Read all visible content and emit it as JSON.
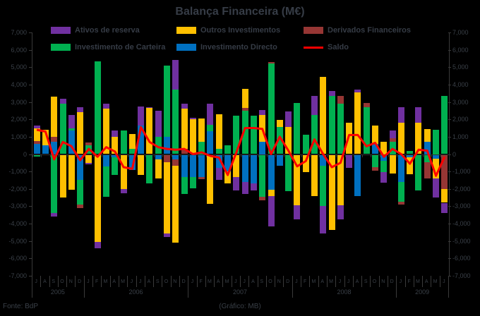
{
  "title": "Balança Financeira (M€)",
  "legend": [
    {
      "label": "Ativos de reserva",
      "color": "#7030A0",
      "type": "box"
    },
    {
      "label": "Outros Investimentos",
      "color": "#FFC000",
      "type": "box"
    },
    {
      "label": "Derivados Financeiros",
      "color": "#963634",
      "type": "box"
    },
    {
      "label": "Investimento de Carteira",
      "color": "#00B050",
      "type": "box"
    },
    {
      "label": "Investimento Directo",
      "color": "#0070C0",
      "type": "box"
    },
    {
      "label": "Saldo",
      "color": "#FF0000",
      "type": "line"
    }
  ],
  "footer": {
    "source": "Fonte: BdP",
    "credit": "(Gráfico: MB)"
  },
  "colors": {
    "background": "#000000",
    "text": "#3a4048",
    "axis": "#3a3a3a"
  },
  "chart_data": {
    "type": "bar",
    "stacked": true,
    "title": "Balança Financeira (M€)",
    "ylabel": "",
    "xlabel": "",
    "ylim": [
      -7000,
      7000
    ],
    "y_tick_step": 1000,
    "grid": false,
    "legend_position": "top",
    "y_tick_labels": [
      "7,000",
      "6,000",
      "5,000",
      "4,000",
      "3,000",
      "2,000",
      "1,000",
      "0",
      "-1,000",
      "-2,000",
      "-3,000",
      "-4,000",
      "-5,000",
      "-6,000",
      "-7,000"
    ],
    "months": [
      "J",
      "A",
      "S",
      "O",
      "N",
      "D",
      "J",
      "F",
      "M",
      "A",
      "M",
      "J",
      "J",
      "A",
      "S",
      "O",
      "N",
      "D",
      "J",
      "F",
      "M",
      "A",
      "M",
      "J",
      "J",
      "A",
      "S",
      "O",
      "N",
      "D",
      "J",
      "F",
      "M",
      "A",
      "M",
      "J",
      "J",
      "A",
      "S",
      "O",
      "N",
      "D",
      "J",
      "F",
      "M",
      "A",
      "M",
      "J"
    ],
    "year_groups": [
      {
        "label": "2005",
        "start": 0,
        "count": 6
      },
      {
        "label": "2006",
        "start": 6,
        "count": 12
      },
      {
        "label": "2007",
        "start": 18,
        "count": 12
      },
      {
        "label": "2008",
        "start": 30,
        "count": 12
      },
      {
        "label": "2009",
        "start": 42,
        "count": 6
      }
    ],
    "series": [
      {
        "name": "Investimento Directo",
        "color": "#0070C0",
        "values": [
          600,
          500,
          700,
          0,
          1350,
          -1500,
          0,
          0,
          -700,
          -200,
          0,
          -900,
          1650,
          0,
          -300,
          1000,
          -300,
          -1300,
          -1300,
          -1300,
          1300,
          -800,
          -1000,
          0,
          -1600,
          -1700,
          700,
          -2050,
          -650,
          0,
          0,
          0,
          0,
          -650,
          0,
          0,
          0,
          -2400,
          0,
          600,
          -400,
          0,
          -1600,
          -200,
          0,
          700,
          -250,
          0
        ]
      },
      {
        "name": "Investimento de Carteira",
        "color": "#00B050",
        "values": [
          -150,
          0,
          -3400,
          2900,
          150,
          -1400,
          500,
          5350,
          -1750,
          -1000,
          1350,
          300,
          0,
          -1700,
          1000,
          4100,
          3700,
          -1000,
          -650,
          700,
          400,
          300,
          500,
          2200,
          2500,
          2200,
          -2450,
          5200,
          1550,
          -2150,
          2950,
          1100,
          2250,
          -2350,
          3350,
          2900,
          0,
          0,
          2700,
          -750,
          -650,
          700,
          -1150,
          200,
          -2100,
          -450,
          1400,
          3350
        ]
      },
      {
        "name": "Derivados Financeiros",
        "color": "#963634",
        "values": [
          150,
          0,
          300,
          0,
          0,
          -200,
          150,
          0,
          0,
          0,
          0,
          0,
          0,
          0,
          0,
          -450,
          -350,
          300,
          0,
          -150,
          0,
          0,
          0,
          0,
          150,
          0,
          -200,
          100,
          0,
          0,
          0,
          0,
          0,
          0,
          0,
          450,
          0,
          0,
          250,
          -200,
          0,
          200,
          -150,
          0,
          0,
          -950,
          0,
          -2000
        ]
      },
      {
        "name": "Outros Investimentos",
        "color": "#FFC000",
        "values": [
          750,
          900,
          2300,
          -2500,
          -2050,
          2400,
          -500,
          -5050,
          2600,
          1000,
          -2000,
          850,
          -1200,
          2650,
          -1100,
          -4100,
          -4450,
          2300,
          2000,
          1350,
          -2850,
          2000,
          -700,
          -1300,
          1100,
          0,
          1550,
          -350,
          400,
          1550,
          -2950,
          -1050,
          -2400,
          4450,
          -4350,
          -2950,
          1800,
          3550,
          0,
          1050,
          700,
          -1100,
          1800,
          -950,
          1800,
          750,
          -1150,
          -800
        ]
      },
      {
        "name": "Ativos de reserva",
        "color": "#7030A0",
        "values": [
          150,
          0,
          -200,
          300,
          750,
          300,
          -100,
          -350,
          300,
          350,
          -250,
          0,
          1100,
          50,
          1500,
          -200,
          1700,
          300,
          100,
          0,
          1200,
          -700,
          0,
          -800,
          -700,
          -400,
          270,
          -1750,
          0,
          900,
          -800,
          0,
          1100,
          -1550,
          280,
          -800,
          -800,
          170,
          0,
          0,
          -600,
          450,
          900,
          0,
          900,
          0,
          -1100,
          -600
        ]
      }
    ],
    "line_series": {
      "name": "Saldo",
      "color": "#FF0000",
      "values": [
        1400,
        1300,
        -300,
        700,
        450,
        -350,
        300,
        -150,
        400,
        150,
        -750,
        -850,
        1550,
        700,
        400,
        300,
        250,
        300,
        0,
        100,
        -100,
        -200,
        -1200,
        100,
        1500,
        1500,
        1450,
        0,
        1000,
        200,
        -700,
        -400,
        850,
        0,
        -750,
        -500,
        1100,
        1100,
        450,
        650,
        -150,
        300,
        0,
        -550,
        250,
        200,
        -1250,
        -150
      ]
    }
  }
}
